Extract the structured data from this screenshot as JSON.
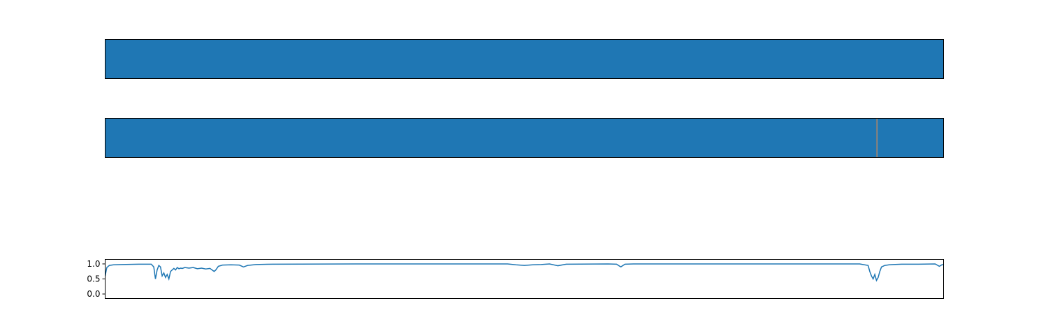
{
  "colors": {
    "background": "#ffffff",
    "axis": "#000000",
    "label_color": "#1f77b4",
    "marker_color": "#d0804a",
    "line_color": "#1f77b4"
  },
  "chart_data": [
    {
      "type": "heatmap",
      "title": "",
      "xlabel": "",
      "ylabel": "",
      "ticks_visible": false,
      "segments": [
        {
          "start": 0,
          "end": 1,
          "color": "#1f77b4"
        }
      ]
    },
    {
      "type": "heatmap",
      "title": "",
      "xlabel": "",
      "ylabel": "",
      "ticks_visible": false,
      "segments": [
        {
          "start": 0,
          "end": 0.92,
          "color": "#1f77b4"
        },
        {
          "start": 0.92,
          "end": 0.921,
          "color": "#d0804a"
        },
        {
          "start": 0.921,
          "end": 1,
          "color": "#1f77b4"
        }
      ]
    },
    {
      "type": "line",
      "title": "",
      "xlabel": "",
      "ylabel": "",
      "xlim": [
        0,
        1
      ],
      "ylim": [
        -0.15,
        1.15
      ],
      "yticks": [
        0.0,
        0.5,
        1.0
      ],
      "ytick_labels": [
        "0.0",
        "0.5",
        "1.0"
      ],
      "xticks_visible": false,
      "grid": false,
      "series": [
        {
          "color": "#1f77b4",
          "x": [
            0.0,
            0.002,
            0.005,
            0.01,
            0.02,
            0.04,
            0.055,
            0.058,
            0.06,
            0.062,
            0.064,
            0.066,
            0.068,
            0.07,
            0.072,
            0.074,
            0.076,
            0.078,
            0.08,
            0.082,
            0.084,
            0.086,
            0.088,
            0.09,
            0.092,
            0.095,
            0.1,
            0.105,
            0.11,
            0.115,
            0.12,
            0.125,
            0.13,
            0.132,
            0.135,
            0.14,
            0.15,
            0.16,
            0.165,
            0.17,
            0.18,
            0.2,
            0.3,
            0.4,
            0.48,
            0.49,
            0.5,
            0.51,
            0.52,
            0.53,
            0.54,
            0.55,
            0.6,
            0.61,
            0.615,
            0.62,
            0.63,
            0.7,
            0.8,
            0.9,
            0.91,
            0.912,
            0.914,
            0.916,
            0.918,
            0.92,
            0.922,
            0.924,
            0.926,
            0.93,
            0.935,
            0.94,
            0.95,
            0.97,
            0.99,
            0.995,
            0.998,
            1.0
          ],
          "y": [
            0.6,
            0.88,
            0.95,
            0.97,
            0.98,
            0.99,
            0.99,
            0.9,
            0.5,
            0.8,
            0.95,
            0.9,
            0.6,
            0.7,
            0.55,
            0.65,
            0.5,
            0.75,
            0.8,
            0.85,
            0.8,
            0.88,
            0.84,
            0.86,
            0.85,
            0.88,
            0.86,
            0.88,
            0.84,
            0.86,
            0.83,
            0.85,
            0.75,
            0.8,
            0.92,
            0.96,
            0.97,
            0.96,
            0.9,
            0.95,
            0.98,
            0.99,
            1.0,
            1.0,
            1.0,
            0.97,
            0.95,
            0.97,
            0.98,
            1.0,
            0.94,
            0.99,
            1.0,
            0.99,
            0.9,
            0.99,
            1.0,
            1.0,
            1.0,
            1.0,
            0.95,
            0.75,
            0.6,
            0.5,
            0.65,
            0.45,
            0.55,
            0.75,
            0.9,
            0.95,
            0.97,
            0.98,
            0.99,
            0.99,
            1.0,
            0.92,
            0.97,
            0.98
          ]
        }
      ]
    }
  ]
}
